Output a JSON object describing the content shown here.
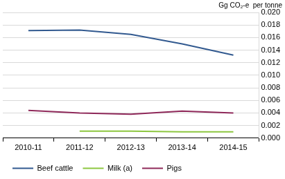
{
  "chart_data": {
    "type": "line",
    "ylabel": "Gg CO₂-e  per tonne",
    "categories": [
      "2010-11",
      "2011-12",
      "2012-13",
      "2013-14",
      "2014-15"
    ],
    "series": [
      {
        "name": "Beef cattle",
        "color": "#31598f",
        "values": [
          0.0171,
          0.0172,
          0.0165,
          0.015,
          0.0132
        ]
      },
      {
        "name": "Milk (a)",
        "color": "#8cc63f",
        "values": [
          null,
          0.0011,
          0.0011,
          0.001,
          0.001
        ]
      },
      {
        "name": "Pigs",
        "color": "#8e2859",
        "values": [
          0.0044,
          0.004,
          0.0038,
          0.0043,
          0.004
        ]
      }
    ],
    "ylim": [
      0,
      0.02
    ],
    "yticks": [
      {
        "value": 0,
        "label": "0.000"
      },
      {
        "value": 0.002,
        "label": "0.002"
      },
      {
        "value": 0.004,
        "label": "0.004"
      },
      {
        "value": 0.006,
        "label": "0.006"
      },
      {
        "value": 0.008,
        "label": "0.008"
      },
      {
        "value": 0.01,
        "label": "0.010"
      },
      {
        "value": 0.012,
        "label": "0.012"
      },
      {
        "value": 0.014,
        "label": "0.014"
      },
      {
        "value": 0.016,
        "label": "0.016"
      },
      {
        "value": 0.018,
        "label": "0.018"
      },
      {
        "value": 0.02,
        "label": "0.020"
      }
    ],
    "grid": true,
    "legend": "bottom"
  }
}
